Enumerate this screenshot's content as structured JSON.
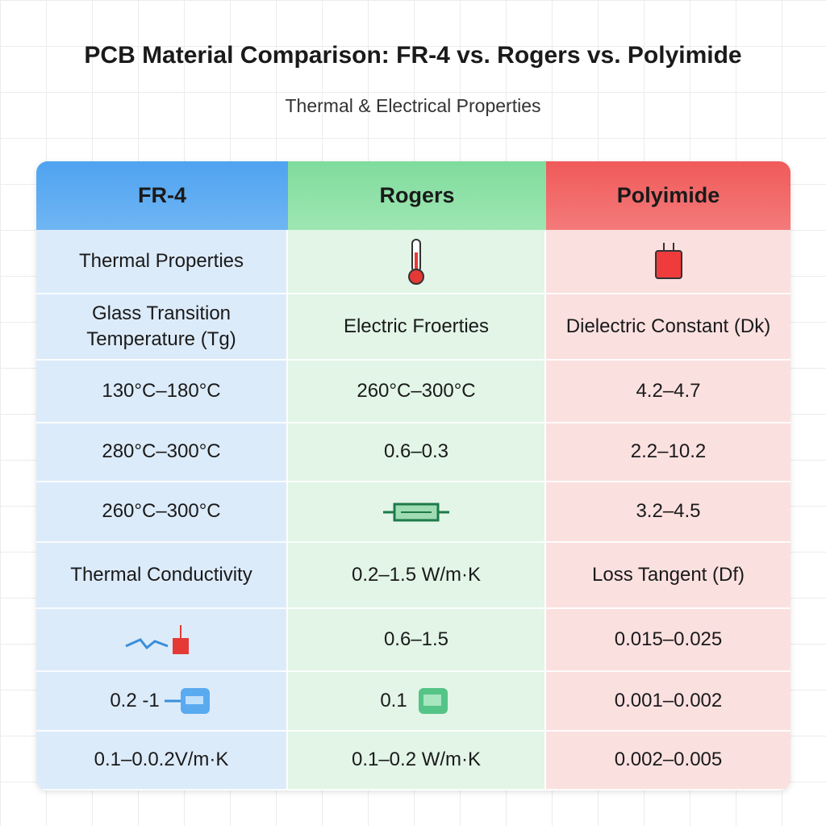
{
  "header": {
    "title": "PCB Material Comparison: FR-4 vs. Rogers vs. Polyimide",
    "subtitle": "Thermal & Electrical Properties"
  },
  "table": {
    "columns": [
      "FR-4",
      "Rogers",
      "Polyimide"
    ],
    "rows": [
      [
        "Thermal Properties",
        null,
        null
      ],
      [
        "Glass Transition Temperature (Tg)",
        "Electric Froerties",
        "Dielectric Constant (Dk)"
      ],
      [
        "130°C–180°C",
        "260°C–300°C",
        "4.2–4.7"
      ],
      [
        "280°C–300°C",
        "0.6–0.3",
        "2.2–10.2"
      ],
      [
        "260°C–300°C",
        null,
        "3.2–4.5"
      ],
      [
        "Thermal Conductivity",
        "0.2–1.5 W/m·K",
        "Loss Tangent (Df)"
      ],
      [
        null,
        "0.6–1.5",
        "0.015–0.025"
      ],
      [
        "0.2 -1",
        "0.1",
        "0.001–0.002"
      ],
      [
        "0.1–0.0.2V/m·K",
        "0.1–0.2 W/m·K",
        "0.002–0.005"
      ]
    ]
  }
}
